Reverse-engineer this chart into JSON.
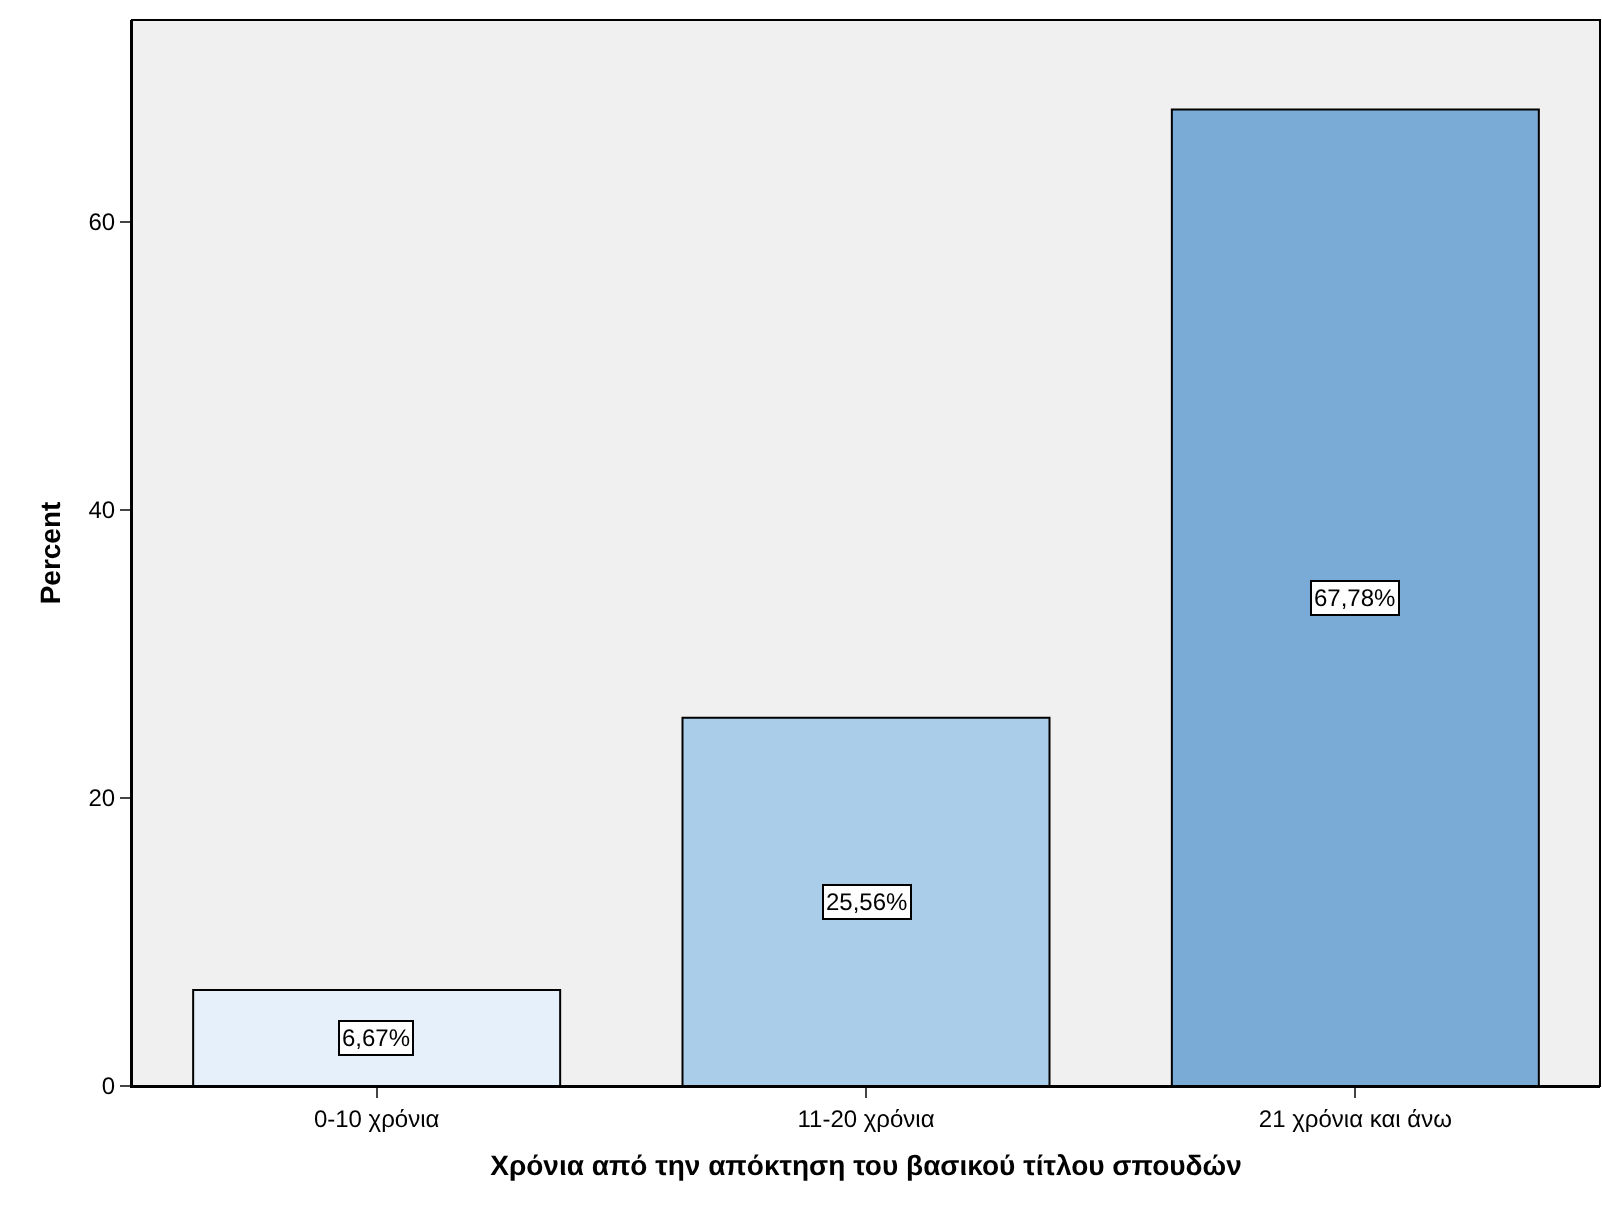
{
  "chart_data": {
    "type": "bar",
    "xlabel": "Χρόνια από την απόκτηση του βασικού τίτλου σπουδών",
    "ylabel": "Percent",
    "categories": [
      "0-10 χρόνια",
      "11-20 χρόνια",
      "21 χρόνια και άνω"
    ],
    "values": [
      6.67,
      25.56,
      67.78
    ],
    "colors": [
      "#e6f0fb",
      "#aacde9",
      "#7aaad6"
    ],
    "value_labels": [
      "6,67%",
      "25,56%",
      "67,78%"
    ],
    "ylim": [
      0,
      74
    ],
    "yticks": [
      0,
      20,
      40,
      60
    ],
    "grid": false
  }
}
